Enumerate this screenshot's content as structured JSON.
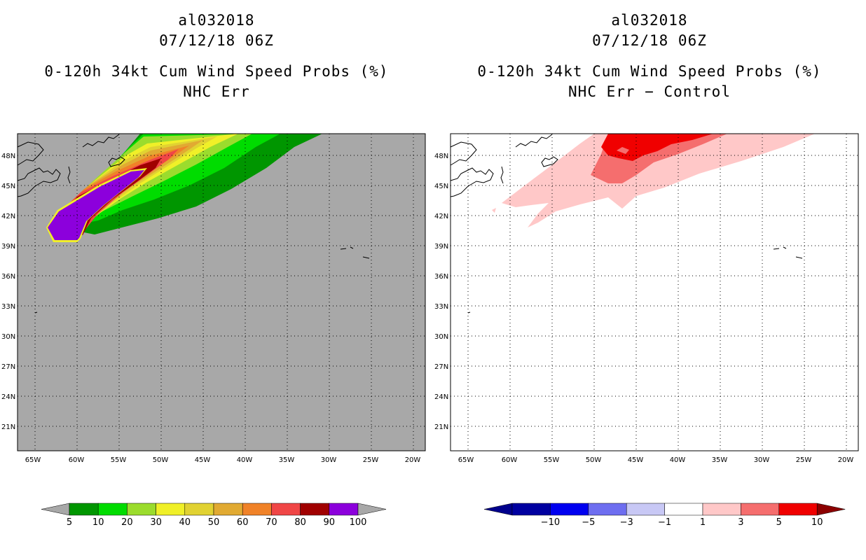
{
  "panels": [
    {
      "storm_id": "al032018",
      "datetime": "07/12/18 06Z",
      "product": "0-120h 34kt Cum Wind Speed Probs (%)",
      "subtitle": "NHC Err",
      "background": "#a8a8a8",
      "colorbar": {
        "labels": [
          "5",
          "10",
          "20",
          "30",
          "40",
          "50",
          "60",
          "70",
          "80",
          "90",
          "100"
        ],
        "colors": [
          "#009600",
          "#00dc00",
          "#9bdc2d",
          "#f0f028",
          "#e1d232",
          "#e1aa32",
          "#f08228",
          "#f04646",
          "#a00000",
          "#8c00dc"
        ]
      }
    },
    {
      "storm_id": "al032018",
      "datetime": "07/12/18 06Z",
      "product": "0-120h 34kt Cum Wind Speed Probs (%)",
      "subtitle": "NHC Err − Control",
      "background": "#ffffff",
      "colorbar": {
        "labels": [
          "−10",
          "−5",
          "−3",
          "−1",
          "1",
          "3",
          "5",
          "10"
        ],
        "colors": [
          "#0000a0",
          "#0000f0",
          "#6e6ef0",
          "#c8c8f5",
          "#ffffff",
          "#ffc8c8",
          "#f56e6e",
          "#f00000"
        ],
        "end_colors": [
          "#00008c",
          "#8c0000"
        ]
      }
    }
  ],
  "axes": {
    "lat_labels": [
      "48N",
      "45N",
      "42N",
      "39N",
      "36N",
      "33N",
      "30N",
      "27N",
      "24N",
      "21N"
    ],
    "lon_labels": [
      "65W",
      "60W",
      "55W",
      "50W",
      "45W",
      "40W",
      "35W",
      "30W",
      "25W",
      "20W"
    ]
  }
}
